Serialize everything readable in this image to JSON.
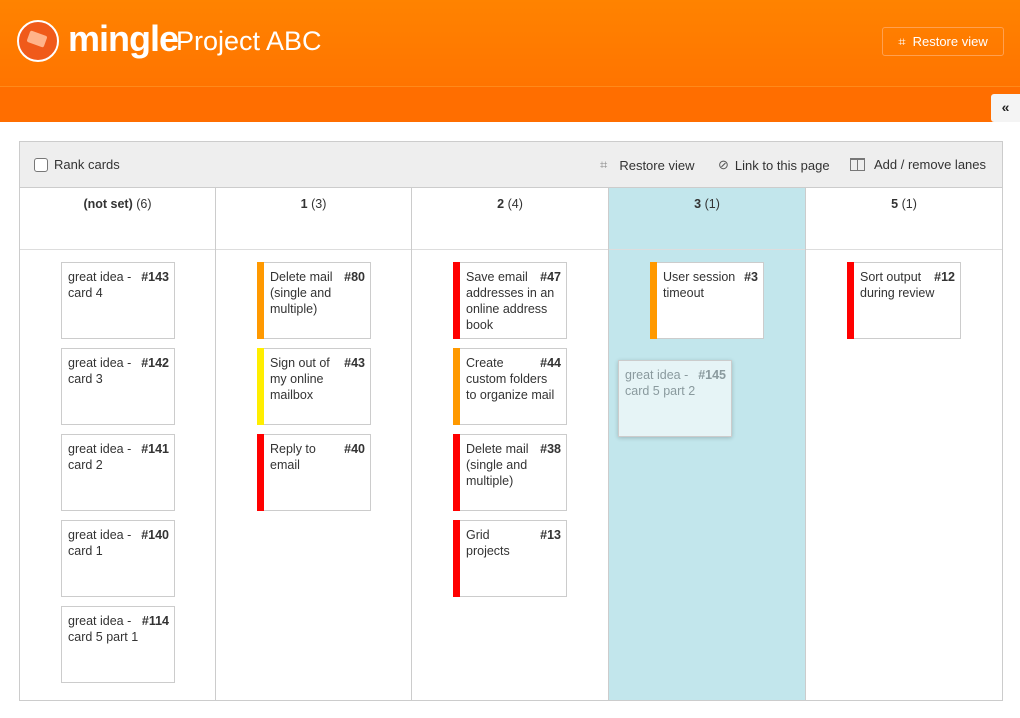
{
  "header": {
    "brand": "mingle",
    "project": "Project ABC",
    "restore_view": "Restore view",
    "collapse": "«"
  },
  "toolbar": {
    "rank_cards": "Rank cards",
    "restore_view": "Restore view",
    "link": "Link to this page",
    "lanes": "Add / remove lanes"
  },
  "lanes": [
    {
      "name": "(not set)",
      "count": "(6)",
      "highlight": false,
      "cards": [
        {
          "num": "#143",
          "title": "great idea - card 4"
        },
        {
          "num": "#142",
          "title": "great idea - card 3"
        },
        {
          "num": "#141",
          "title": "great idea - card 2"
        },
        {
          "num": "#140",
          "title": "great idea - card 1"
        },
        {
          "num": "#114",
          "title": "great idea - card 5 part 1"
        }
      ]
    },
    {
      "name": "1",
      "count": "(3)",
      "highlight": false,
      "cards": [
        {
          "num": "#80",
          "title": "Delete mail (single and multiple)",
          "color": "#ff9900"
        },
        {
          "num": "#43",
          "title": "Sign out of my online mailbox",
          "color": "#ffee00"
        },
        {
          "num": "#40",
          "title": "Reply to email",
          "color": "#ff0000"
        }
      ]
    },
    {
      "name": "2",
      "count": "(4)",
      "highlight": false,
      "cards": [
        {
          "num": "#47",
          "title": "Save email addresses in an online address book",
          "color": "#ff0000"
        },
        {
          "num": "#44",
          "title": "Create custom folders to organize mail",
          "color": "#ff9900"
        },
        {
          "num": "#38",
          "title": "Delete mail (single and multiple)",
          "color": "#ff0000"
        },
        {
          "num": "#13",
          "title": "Grid projects",
          "color": "#ff0000"
        }
      ]
    },
    {
      "name": "3",
      "count": "(1)",
      "highlight": true,
      "cards": [
        {
          "num": "#3",
          "title": "User session timeout",
          "color": "#ff9900"
        }
      ]
    },
    {
      "name": "5",
      "count": "(1)",
      "highlight": false,
      "cards": [
        {
          "num": "#12",
          "title": "Sort output during review",
          "color": "#ff0000"
        }
      ]
    }
  ],
  "dragging_card": {
    "num": "#145",
    "title": "great idea - card 5 part 2"
  }
}
